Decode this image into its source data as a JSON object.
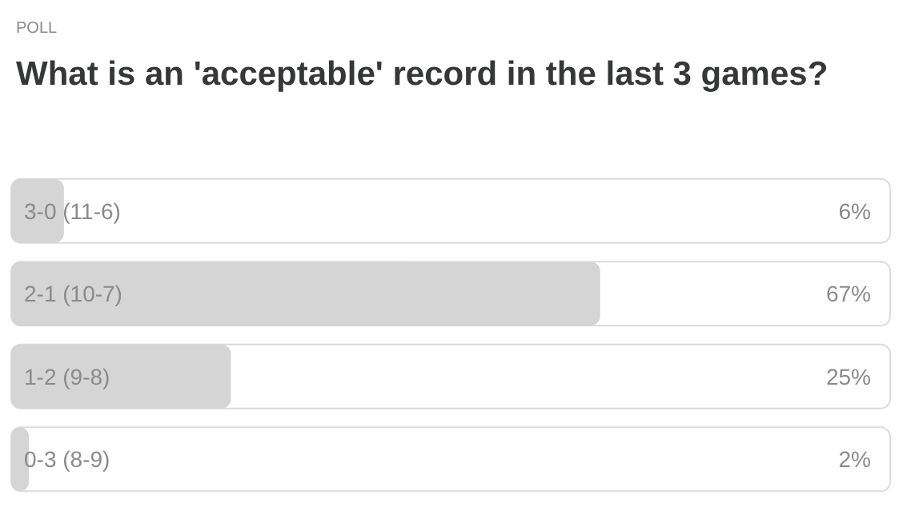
{
  "chart_data": {
    "type": "bar",
    "orientation": "horizontal",
    "subtitle": "POLL",
    "title": "What is an 'acceptable' record in the last 3 games?",
    "categories": [
      "3-0 (11-6)",
      "2-1 (10-7)",
      "1-2 (9-8)",
      "0-3 (8-9)"
    ],
    "values": [
      6,
      67,
      25,
      2
    ],
    "value_labels": [
      "6%",
      "67%",
      "25%",
      "2%"
    ],
    "color": "#d5d5d5",
    "xlim": [
      0,
      100
    ],
    "tick_labels": "y"
  }
}
